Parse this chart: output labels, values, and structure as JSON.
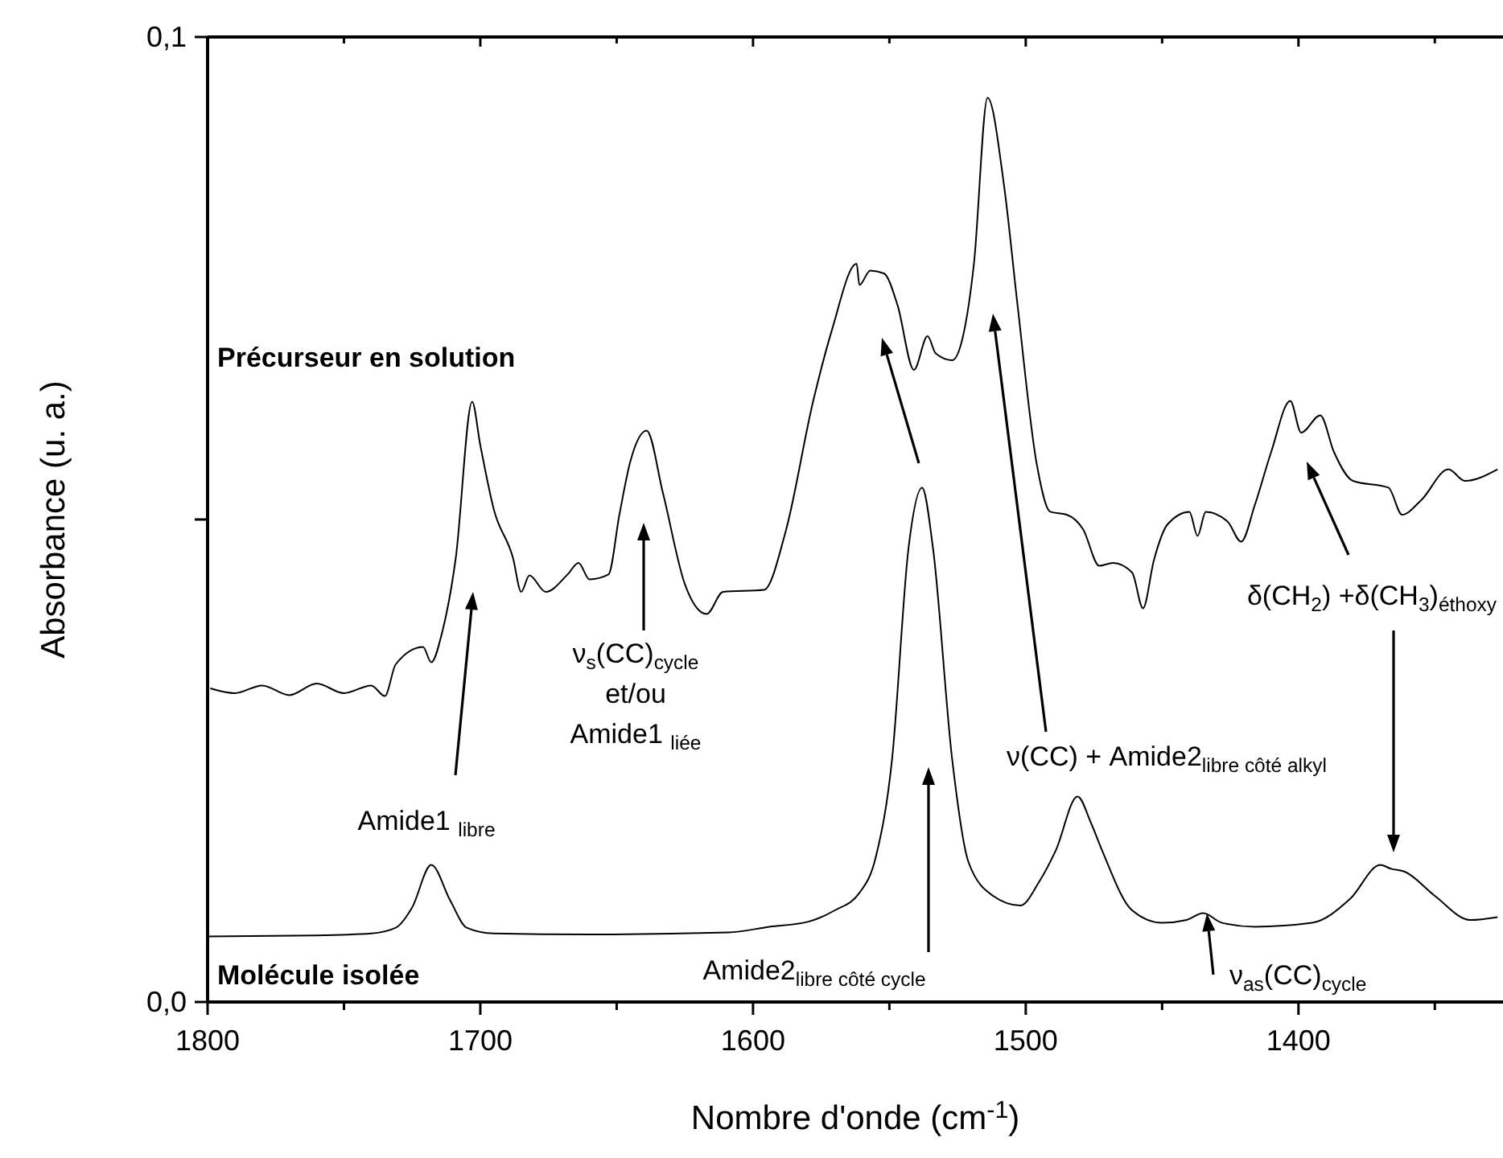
{
  "chart_data": {
    "type": "line",
    "xlabel": "Nombre d'onde (cm$^{-1}$)",
    "ylabel": "Absorbance (u. a.)",
    "xlim": [
      1800,
      1325
    ],
    "ylim": [
      0,
      0.1
    ],
    "xticks": [
      1800,
      {
        "value": 1750,
        "label": null
      },
      1700,
      {
        "value": 1650,
        "label": null
      },
      1600,
      {
        "value": 1550,
        "label": null
      },
      1500,
      {
        "value": 1450,
        "label": null
      },
      1400,
      {
        "value": 1350,
        "label": null
      }
    ],
    "yticks": [
      {
        "value": 0,
        "label": "0,0"
      },
      {
        "value": 0.05,
        "label": null
      },
      {
        "value": 0.1,
        "label": "0,1"
      }
    ],
    "series": [
      {
        "name": "Précurseur en solution",
        "color": "#000000",
        "x": [
          1799,
          1790,
          1780,
          1770,
          1760,
          1750,
          1740,
          1735,
          1731,
          1721,
          1718,
          1714,
          1709,
          1703,
          1700,
          1695,
          1688,
          1685,
          1682,
          1676,
          1668,
          1664,
          1660,
          1653,
          1649,
          1645,
          1639,
          1633,
          1625,
          1617,
          1611,
          1596,
          1588,
          1578,
          1571,
          1562,
          1561,
          1557,
          1552,
          1547,
          1541,
          1536,
          1533,
          1527,
          1523,
          1519,
          1514,
          1508,
          1503,
          1496,
          1491,
          1485,
          1479,
          1473,
          1468,
          1461,
          1457,
          1453,
          1448,
          1440,
          1437,
          1434,
          1426,
          1421,
          1416,
          1410,
          1403,
          1399,
          1392,
          1387,
          1380,
          1367,
          1362,
          1355,
          1345,
          1339,
          1327
        ],
        "values": [
          0.0325,
          0.032,
          0.0328,
          0.0318,
          0.033,
          0.032,
          0.0328,
          0.0317,
          0.035,
          0.0368,
          0.0352,
          0.0383,
          0.046,
          0.0622,
          0.0577,
          0.051,
          0.046,
          0.0425,
          0.0442,
          0.0425,
          0.0443,
          0.0455,
          0.0438,
          0.0443,
          0.0505,
          0.056,
          0.0592,
          0.0527,
          0.0433,
          0.0402,
          0.0425,
          0.0427,
          0.0488,
          0.0622,
          0.0697,
          0.0765,
          0.0743,
          0.0758,
          0.0755,
          0.0722,
          0.0655,
          0.069,
          0.0672,
          0.0665,
          0.069,
          0.0765,
          0.0937,
          0.0847,
          0.0722,
          0.0558,
          0.0508,
          0.0505,
          0.049,
          0.0452,
          0.0455,
          0.0445,
          0.0408,
          0.0458,
          0.0495,
          0.0508,
          0.0483,
          0.0508,
          0.0498,
          0.0477,
          0.0515,
          0.057,
          0.0623,
          0.059,
          0.0608,
          0.057,
          0.054,
          0.0533,
          0.0505,
          0.052,
          0.0552,
          0.054,
          0.0552
        ]
      },
      {
        "name": "Molécule isolée",
        "color": "#000000",
        "x": [
          1800,
          1760,
          1740,
          1731,
          1725,
          1718,
          1711,
          1705,
          1695,
          1660,
          1609,
          1594,
          1580,
          1570,
          1561,
          1555,
          1549,
          1543,
          1538,
          1534,
          1527,
          1521,
          1512,
          1502,
          1495,
          1489,
          1481,
          1476,
          1472,
          1461,
          1450,
          1441,
          1435,
          1428,
          1416,
          1395,
          1381,
          1370,
          1366,
          1361,
          1350,
          1337,
          1327
        ],
        "values": [
          0.0068,
          0.0069,
          0.0071,
          0.0077,
          0.0098,
          0.0142,
          0.0105,
          0.0077,
          0.0071,
          0.007,
          0.0072,
          0.0078,
          0.0083,
          0.0095,
          0.0113,
          0.015,
          0.0252,
          0.047,
          0.0533,
          0.047,
          0.0252,
          0.0145,
          0.011,
          0.01,
          0.0125,
          0.0157,
          0.0213,
          0.0185,
          0.0157,
          0.0095,
          0.0082,
          0.0085,
          0.0092,
          0.0082,
          0.0078,
          0.0082,
          0.0107,
          0.0142,
          0.0138,
          0.0135,
          0.011,
          0.0085,
          0.0088
        ]
      }
    ],
    "annotations": [
      "Amide1 $_{libre}$",
      "ν$_{s}$(CC)$_{cycle}$\net/ou\nAmide1 $_{liée}$",
      "Amide2$_{libre côté cycle}$",
      "ν(CC) + Amide2$_{libre côté alkyl}$",
      "δ(CH$_{2}$) +δ(CH$_{3}$)$_{éthoxy}$",
      "ν$_{as}$(CC)$_{cycle}$"
    ]
  }
}
